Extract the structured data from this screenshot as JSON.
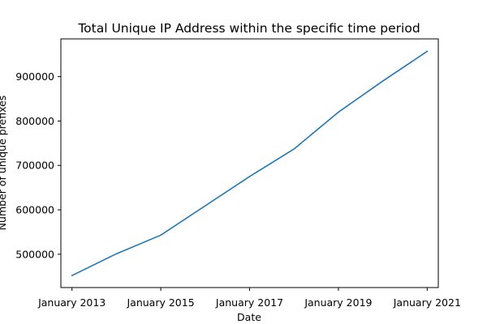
{
  "chart_data": {
    "type": "line",
    "title": "Total Unique IP Address within the specific time period",
    "xlabel": "Date",
    "ylabel": "Number of unique prefixes",
    "x": [
      "2013-01",
      "2014-01",
      "2015-01",
      "2016-01",
      "2017-01",
      "2018-01",
      "2019-01",
      "2020-01",
      "2021-01"
    ],
    "series": [
      {
        "values": [
          452000,
          501000,
          543000,
          609000,
          675000,
          737000,
          820000,
          890000,
          957000
        ]
      }
    ],
    "xlim": [
      "2012-10",
      "2021-04"
    ],
    "ylim": [
      425000,
      985000
    ],
    "xticks": [
      {
        "x": "2013-01",
        "label": "January 2013"
      },
      {
        "x": "2015-01",
        "label": "January 2015"
      },
      {
        "x": "2017-01",
        "label": "January 2017"
      },
      {
        "x": "2019-01",
        "label": "January 2019"
      },
      {
        "x": "2021-01",
        "label": "January 2021"
      }
    ],
    "yticks": [
      500000,
      600000,
      700000,
      800000,
      900000
    ],
    "line_color": "#1f77b4",
    "grid": false,
    "legend": "none"
  }
}
